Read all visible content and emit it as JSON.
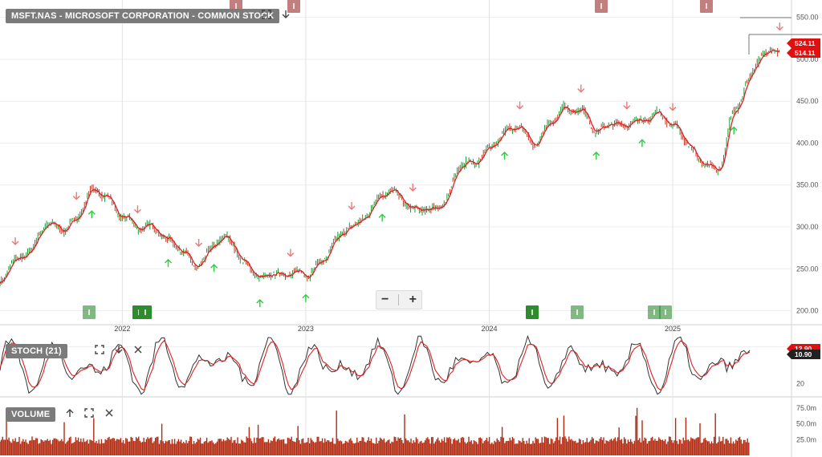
{
  "header": {
    "symbol_title": "MSFT.NAS - MICROSOFT CORPORATION - COMMON STOCK",
    "stoch_label": "STOCH (21)",
    "volume_label": "VOLUME"
  },
  "icons": [
    "expand-icon",
    "arrow-down-icon",
    "arrow-up-icon",
    "close-icon",
    "minus-icon",
    "plus-icon"
  ],
  "colors": {
    "price_line": "#e02020",
    "candle_up": "#1a9a3a",
    "candle_down": "#c0392b",
    "buy_arrow": "#2ecc40",
    "sell_arrow": "#ee7777",
    "volume": "#b32a10",
    "event_marker_red": "#c27f7f",
    "event_marker_green": "#2e8b2e",
    "price_badge": "#e01010"
  },
  "chart_data": [
    {
      "type": "line",
      "panel": "price",
      "x_ticks": [
        "2022",
        "2023",
        "2024",
        "2025"
      ],
      "y_ticks": [
        "200.00",
        "250.00",
        "300.00",
        "350.00",
        "400.00",
        "450.00",
        "500.00",
        "550.00"
      ],
      "ylim": [
        190,
        565
      ],
      "x_range": [
        "2021-05",
        "2025-08"
      ],
      "series": [
        {
          "x": [
            "2021-05",
            "2021-06",
            "2021-07",
            "2021-08",
            "2021-09",
            "2021-10",
            "2021-11",
            "2021-12",
            "2022-01",
            "2022-02",
            "2022-03",
            "2022-04",
            "2022-05",
            "2022-06",
            "2022-07",
            "2022-08",
            "2022-09",
            "2022-10",
            "2022-11",
            "2022-12",
            "2023-01",
            "2023-02",
            "2023-03",
            "2023-04",
            "2023-05",
            "2023-06",
            "2023-07",
            "2023-08",
            "2023-09",
            "2023-10",
            "2023-11",
            "2023-12",
            "2024-01",
            "2024-02",
            "2024-03",
            "2024-04",
            "2024-05",
            "2024-06",
            "2024-07",
            "2024-08",
            "2024-09",
            "2024-10",
            "2024-11",
            "2024-12",
            "2025-01",
            "2025-02",
            "2025-03",
            "2025-04",
            "2025-05",
            "2025-06",
            "2025-07",
            "2025-08"
          ],
          "values": [
            232,
            258,
            276,
            300,
            298,
            312,
            340,
            338,
            312,
            296,
            305,
            282,
            268,
            256,
            276,
            288,
            258,
            234,
            248,
            244,
            240,
            262,
            282,
            300,
            318,
            336,
            342,
            322,
            316,
            330,
            370,
            374,
            398,
            410,
            420,
            400,
            420,
            445,
            440,
            410,
            428,
            420,
            425,
            440,
            418,
            400,
            378,
            362,
            440,
            478,
            505,
            514
          ]
        }
      ],
      "last_values": [
        "524.11",
        "514.11"
      ],
      "sell_signals": [
        "2021-06",
        "2021-10",
        "2022-02",
        "2022-06",
        "2022-12",
        "2023-04",
        "2023-08",
        "2024-03",
        "2024-07",
        "2024-10",
        "2025-01",
        "2025-08"
      ],
      "buy_signals": [
        "2021-11",
        "2022-04",
        "2022-07",
        "2022-10",
        "2023-01",
        "2023-06",
        "2024-02",
        "2024-08",
        "2024-11",
        "2025-05"
      ]
    },
    {
      "type": "line",
      "panel": "stochastic",
      "y_ticks": [
        "20"
      ],
      "ylim": [
        0,
        100
      ],
      "last_values": [
        "12.90",
        "10.90"
      ]
    },
    {
      "type": "bar",
      "panel": "volume",
      "y_ticks": [
        "25.0m",
        "50.0m",
        "75.0m"
      ],
      "ylim": [
        0,
        90
      ]
    }
  ]
}
